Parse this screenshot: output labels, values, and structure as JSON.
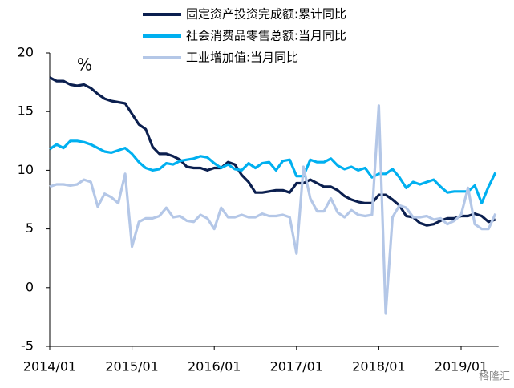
{
  "chart_data": {
    "type": "line",
    "unit_label": "%",
    "watermark": "格隆汇",
    "categories": [
      "2014/01",
      null,
      null,
      null,
      null,
      null,
      null,
      null,
      null,
      null,
      null,
      null,
      "2015/01",
      null,
      null,
      null,
      null,
      null,
      null,
      null,
      null,
      null,
      null,
      null,
      "2016/01",
      null,
      null,
      null,
      null,
      null,
      null,
      null,
      null,
      null,
      null,
      null,
      "2017/01",
      null,
      null,
      null,
      null,
      null,
      null,
      null,
      null,
      null,
      null,
      null,
      "2018/01",
      null,
      null,
      null,
      null,
      null,
      null,
      null,
      null,
      null,
      null,
      null,
      "2019/01",
      null,
      null,
      null,
      null,
      null
    ],
    "ylim": [
      -5,
      20
    ],
    "yticks": [
      -5,
      0,
      5,
      10,
      15,
      20
    ],
    "series": [
      {
        "name": "固定资产投资完成额:累计同比",
        "color": "#0b1f4f",
        "values": [
          17.9,
          17.6,
          17.6,
          17.3,
          17.2,
          17.3,
          17.0,
          16.5,
          16.1,
          15.9,
          15.8,
          15.7,
          14.8,
          13.9,
          13.5,
          12.0,
          11.4,
          11.4,
          11.2,
          10.9,
          10.3,
          10.2,
          10.2,
          10.0,
          10.2,
          10.2,
          10.7,
          10.5,
          9.6,
          9.0,
          8.1,
          8.1,
          8.2,
          8.3,
          8.3,
          8.1,
          8.9,
          8.9,
          9.2,
          8.9,
          8.6,
          8.6,
          8.3,
          7.8,
          7.5,
          7.3,
          7.2,
          7.2,
          7.9,
          7.9,
          7.5,
          7.0,
          6.1,
          6.0,
          5.5,
          5.3,
          5.4,
          5.7,
          5.9,
          5.9,
          6.1,
          6.1,
          6.3,
          6.1,
          5.6,
          5.8
        ]
      },
      {
        "name": "社会消费品零售总额:当月同比",
        "color": "#00b0f0",
        "values": [
          11.8,
          12.2,
          11.9,
          12.5,
          12.5,
          12.4,
          12.2,
          11.9,
          11.6,
          11.5,
          11.7,
          11.9,
          11.4,
          10.7,
          10.2,
          10.0,
          10.1,
          10.6,
          10.5,
          10.8,
          10.9,
          11.0,
          11.2,
          11.1,
          10.6,
          10.2,
          10.5,
          10.1,
          10.0,
          10.6,
          10.2,
          10.6,
          10.7,
          10.0,
          10.8,
          10.9,
          9.5,
          9.5,
          10.9,
          10.7,
          10.7,
          11.0,
          10.4,
          10.1,
          10.3,
          10.0,
          10.2,
          9.4,
          9.7,
          9.7,
          10.1,
          9.4,
          8.5,
          9.0,
          8.8,
          9.0,
          9.2,
          8.6,
          8.1,
          8.2,
          8.2,
          8.2,
          8.7,
          7.2,
          8.6,
          9.8
        ]
      },
      {
        "name": "工业增加值:当月同比",
        "color": "#b4c7e7",
        "values": [
          8.6,
          8.8,
          8.8,
          8.7,
          8.8,
          9.2,
          9.0,
          6.9,
          8.0,
          7.7,
          7.2,
          9.7,
          3.5,
          5.6,
          5.9,
          5.9,
          6.1,
          6.8,
          6.0,
          6.1,
          5.7,
          5.6,
          6.2,
          5.9,
          5.0,
          6.8,
          6.0,
          6.0,
          6.2,
          6.0,
          6.0,
          6.3,
          6.1,
          6.1,
          6.2,
          6.0,
          2.9,
          10.3,
          7.6,
          6.5,
          6.5,
          7.6,
          6.4,
          6.0,
          6.6,
          6.2,
          6.1,
          6.2,
          15.5,
          -2.2,
          6.0,
          7.0,
          6.8,
          6.0,
          6.0,
          6.1,
          5.8,
          5.9,
          5.4,
          5.7,
          6.2,
          8.5,
          5.4,
          5.0,
          5.0,
          6.3
        ]
      }
    ]
  }
}
